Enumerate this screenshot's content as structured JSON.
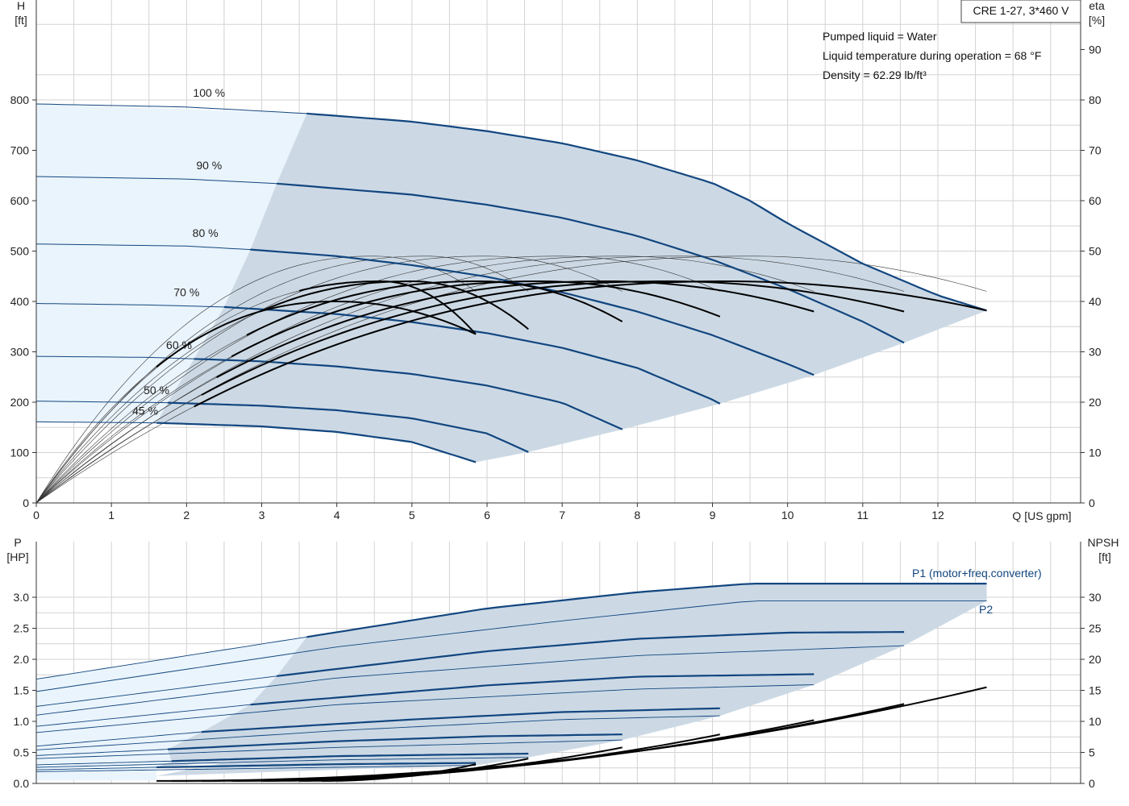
{
  "title": "CRE 1-27, 3*460 V",
  "notes": [
    "Pumped liquid = Water",
    "Liquid temperature during operation = 68 °F",
    "Density = 62.29 lb/ft³"
  ],
  "colors": {
    "area": "#ccd9e5",
    "area_light": "#eaf4fc",
    "curve": "#12467f",
    "eta": "#000000",
    "thin": "#333333"
  },
  "chart_data": [
    {
      "type": "line",
      "name": "head",
      "x_label": "Q [US gpm]",
      "y_label": "H",
      "y_unit": "[ft]",
      "y2_label": "eta",
      "y2_unit": "[%]",
      "xlim": [
        0,
        13.9
      ],
      "ylim": [
        0,
        800
      ],
      "y2lim": [
        0,
        80
      ],
      "x_ticks": [
        "0",
        "1",
        "2",
        "3",
        "4",
        "5",
        "6",
        "7",
        "8",
        "9",
        "10",
        "11",
        "12"
      ],
      "y_ticks": [
        "0",
        "100",
        "200",
        "300",
        "400",
        "500",
        "600",
        "700",
        "800"
      ],
      "y2_ticks": [
        "0",
        "10",
        "20",
        "30",
        "40",
        "50",
        "60",
        "70",
        "80",
        "90"
      ],
      "speed_labels": [
        "100 %",
        "90 %",
        "80 %",
        "70 %",
        "60 %",
        "50 %",
        "45 %"
      ],
      "head_curves": [
        {
          "name": "100 %",
          "H0": 792,
          "Qmax": 12.65,
          "Hend": 382,
          "Qs": 3.6,
          "points": [
            [
              0,
              792
            ],
            [
              2,
              786
            ],
            [
              3.6,
              773
            ],
            [
              5,
              757
            ],
            [
              6,
              738
            ],
            [
              7,
              714
            ],
            [
              8,
              680
            ],
            [
              9,
              635
            ],
            [
              9.5,
              600
            ],
            [
              10,
              555
            ],
            [
              11,
              475
            ],
            [
              12,
              412
            ],
            [
              12.65,
              382
            ]
          ]
        },
        {
          "name": "90 %",
          "H0": 648,
          "Qmax": 11.55,
          "Hend": 318,
          "Qs": 3.2,
          "points": [
            [
              0,
              648
            ],
            [
              2,
              643
            ],
            [
              3.2,
              634
            ],
            [
              5,
              612
            ],
            [
              6,
              592
            ],
            [
              7,
              566
            ],
            [
              8,
              530
            ],
            [
              9,
              483
            ],
            [
              10,
              425
            ],
            [
              11,
              360
            ],
            [
              11.55,
              318
            ]
          ]
        },
        {
          "name": "80 %",
          "H0": 514,
          "Qmax": 10.35,
          "Hend": 254,
          "Qs": 2.85,
          "points": [
            [
              0,
              514
            ],
            [
              2,
              510
            ],
            [
              2.85,
              503
            ],
            [
              4,
              490
            ],
            [
              5,
              472
            ],
            [
              6,
              449
            ],
            [
              7,
              418
            ],
            [
              8,
              380
            ],
            [
              9,
              333
            ],
            [
              10,
              276
            ],
            [
              10.35,
              254
            ]
          ]
        },
        {
          "name": "70 %",
          "H0": 396,
          "Qmax": 9.1,
          "Hend": 197,
          "Qs": 2.5,
          "points": [
            [
              0,
              396
            ],
            [
              1.5,
              393
            ],
            [
              2.5,
              389
            ],
            [
              4,
              375
            ],
            [
              5,
              359
            ],
            [
              6,
              337
            ],
            [
              7,
              308
            ],
            [
              8,
              268
            ],
            [
              9,
              205
            ],
            [
              9.1,
              197
            ]
          ]
        },
        {
          "name": "60 %",
          "H0": 291,
          "Qmax": 7.8,
          "Hend": 146,
          "Qs": 2.1,
          "points": [
            [
              0,
              291
            ],
            [
              1.5,
              289
            ],
            [
              2.1,
              286
            ],
            [
              3,
              281
            ],
            [
              4,
              271
            ],
            [
              5,
              256
            ],
            [
              6,
              233
            ],
            [
              7,
              199
            ],
            [
              7.8,
              146
            ]
          ]
        },
        {
          "name": "50 %",
          "H0": 202,
          "Qmax": 6.55,
          "Hend": 101,
          "Qs": 1.75,
          "points": [
            [
              0,
              202
            ],
            [
              1.75,
              199
            ],
            [
              3,
              193
            ],
            [
              4,
              184
            ],
            [
              5,
              168
            ],
            [
              6,
              138
            ],
            [
              6.55,
              101
            ]
          ]
        },
        {
          "name": "45 %",
          "H0": 161,
          "Qmax": 5.85,
          "Hend": 81,
          "Qs": 1.6,
          "points": [
            [
              0,
              161
            ],
            [
              1.6,
              159
            ],
            [
              3,
              152
            ],
            [
              4,
              141
            ],
            [
              5,
              121
            ],
            [
              5.85,
              81
            ]
          ]
        }
      ],
      "eta_curves": [
        {
          "Qs": 2.1,
          "Qe": 12.65,
          "peak": 44,
          "Qp": 9.2,
          "end": 38.2
        },
        {
          "Qs": 2.2,
          "Qe": 11.55,
          "peak": 44,
          "Qp": 8.4,
          "end": 38
        },
        {
          "Qs": 2.4,
          "Qe": 10.35,
          "peak": 44,
          "Qp": 7.6,
          "end": 38
        },
        {
          "Qs": 2.6,
          "Qe": 9.1,
          "peak": 44,
          "Qp": 6.7,
          "end": 37
        },
        {
          "Qs": 2.8,
          "Qe": 7.8,
          "peak": 44,
          "Qp": 5.9,
          "end": 36
        },
        {
          "Qs": 3.0,
          "Qe": 6.55,
          "peak": 44,
          "Qp": 5.0,
          "end": 34.5
        },
        {
          "Qs": 3.5,
          "Qe": 5.85,
          "peak": 44,
          "Qp": 4.6,
          "end": 33.5
        },
        {
          "Qs": 1.6,
          "Qe": 5.85,
          "peak": 40,
          "Qp": 4.0,
          "end": 33.5
        }
      ],
      "eta_thin": [
        {
          "Qe": 12.65,
          "peak": 49,
          "Qp": 9.5,
          "end": 42
        },
        {
          "Qe": 11.55,
          "peak": 49,
          "Qp": 8.6,
          "end": 42
        },
        {
          "Qe": 10.35,
          "peak": 49,
          "Qp": 7.8,
          "end": 42
        },
        {
          "Qe": 9.1,
          "peak": 49,
          "Qp": 7.0,
          "end": 42
        },
        {
          "Qe": 7.8,
          "peak": 49,
          "Qp": 6.0,
          "end": 42
        },
        {
          "Qe": 6.55,
          "peak": 49,
          "Qp": 5.2,
          "end": 42
        },
        {
          "Qe": 5.85,
          "peak": 49,
          "Qp": 4.5,
          "end": 42
        }
      ]
    },
    {
      "type": "line",
      "name": "power-npsh",
      "y_label": "P",
      "y_unit": "[HP]",
      "y2_label": "NPSH",
      "y2_unit": "[ft]",
      "ylim": [
        0,
        3.35
      ],
      "y2lim": [
        0,
        33.5
      ],
      "y_ticks": [
        "0.0",
        "0.5",
        "1.0",
        "1.5",
        "2.0",
        "2.5",
        "3.0"
      ],
      "y2_ticks": [
        "0",
        "5",
        "10",
        "15",
        "20",
        "25",
        "30"
      ],
      "series_labels": [
        "P1 (motor+freq.converter)",
        "P2"
      ],
      "p1_curves": [
        {
          "Qs": 3.6,
          "Qe": 12.65,
          "points": [
            [
              0,
              1.68
            ],
            [
              3.6,
              2.36
            ],
            [
              6,
              2.82
            ],
            [
              8,
              3.08
            ],
            [
              9.5,
              3.22
            ],
            [
              12.65,
              3.22
            ]
          ]
        },
        {
          "Qs": 3.2,
          "Qe": 11.55,
          "points": [
            [
              0,
              1.24
            ],
            [
              3.2,
              1.73
            ],
            [
              6,
              2.13
            ],
            [
              8,
              2.33
            ],
            [
              10,
              2.43
            ],
            [
              11.55,
              2.44
            ]
          ]
        },
        {
          "Qs": 2.85,
          "Qe": 10.35,
          "points": [
            [
              0,
              0.92
            ],
            [
              2.85,
              1.27
            ],
            [
              6,
              1.58
            ],
            [
              8,
              1.72
            ],
            [
              10.35,
              1.76
            ]
          ]
        },
        {
          "Qs": 2.2,
          "Qe": 9.1,
          "points": [
            [
              0,
              0.6
            ],
            [
              2.2,
              0.83
            ],
            [
              5,
              1.03
            ],
            [
              7,
              1.15
            ],
            [
              9.1,
              1.21
            ]
          ]
        },
        {
          "Qs": 1.75,
          "Qe": 7.8,
          "points": [
            [
              0,
              0.45
            ],
            [
              1.75,
              0.55
            ],
            [
              4,
              0.68
            ],
            [
              6,
              0.76
            ],
            [
              7.8,
              0.79
            ]
          ]
        },
        {
          "Qs": 1.8,
          "Qe": 6.55,
          "points": [
            [
              0,
              0.3
            ],
            [
              1.8,
              0.36
            ],
            [
              4,
              0.44
            ],
            [
              6.55,
              0.48
            ]
          ]
        },
        {
          "Qs": 1.6,
          "Qe": 5.85,
          "points": [
            [
              0,
              0.22
            ],
            [
              1.6,
              0.26
            ],
            [
              4,
              0.31
            ],
            [
              5.85,
              0.33
            ]
          ]
        }
      ],
      "p2_curves": [
        {
          "Qe": 12.65,
          "points": [
            [
              0,
              1.48
            ],
            [
              4,
              2.2
            ],
            [
              7,
              2.62
            ],
            [
              9.5,
              2.94
            ],
            [
              12.65,
              2.94
            ]
          ]
        },
        {
          "Qe": 11.55,
          "points": [
            [
              0,
              1.1
            ],
            [
              4,
              1.7
            ],
            [
              8,
              2.06
            ],
            [
              11.55,
              2.22
            ]
          ]
        },
        {
          "Qe": 10.35,
          "points": [
            [
              0,
              0.82
            ],
            [
              4,
              1.27
            ],
            [
              8,
              1.52
            ],
            [
              10.35,
              1.59
            ]
          ]
        },
        {
          "Qe": 9.1,
          "points": [
            [
              0,
              0.54
            ],
            [
              4,
              0.85
            ],
            [
              7,
              1.03
            ],
            [
              9.1,
              1.09
            ]
          ]
        },
        {
          "Qe": 7.8,
          "points": [
            [
              0,
              0.4
            ],
            [
              4,
              0.58
            ],
            [
              7.8,
              0.7
            ]
          ]
        },
        {
          "Qe": 6.55,
          "points": [
            [
              0,
              0.26
            ],
            [
              4,
              0.38
            ],
            [
              6.55,
              0.42
            ]
          ]
        },
        {
          "Qe": 5.85,
          "points": [
            [
              0,
              0.19
            ],
            [
              4,
              0.26
            ],
            [
              5.85,
              0.29
            ]
          ]
        }
      ],
      "npsh_curves": [
        {
          "Qs": 1.6,
          "Qe": 12.65,
          "end": 15.5
        },
        {
          "Qs": 1.8,
          "Qe": 11.55,
          "end": 12.8
        },
        {
          "Qs": 2.2,
          "Qe": 10.35,
          "end": 10.2
        },
        {
          "Qs": 2.6,
          "Qe": 9.1,
          "end": 7.9
        },
        {
          "Qs": 3.0,
          "Qe": 7.8,
          "end": 5.8
        },
        {
          "Qs": 3.5,
          "Qe": 6.55,
          "end": 4.0
        },
        {
          "Qs": 3.8,
          "Qe": 5.85,
          "end": 3.1
        }
      ]
    }
  ]
}
